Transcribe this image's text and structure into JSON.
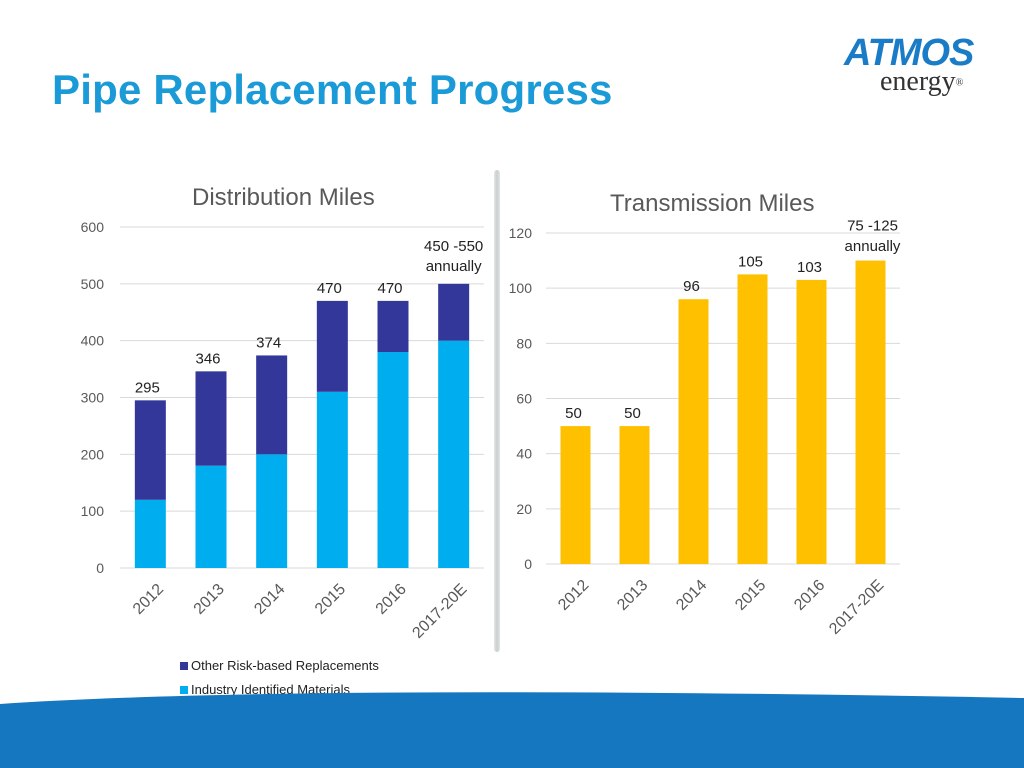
{
  "title": "Pipe Replacement Progress",
  "logo": {
    "brand": "ATMOS",
    "sub": "energy",
    "mark": "®"
  },
  "colors": {
    "title": "#1a9ad6",
    "dark_bar": "#323799",
    "light_bar": "#00aeef",
    "gold_bar": "#ffc000",
    "footer": "#1577bf"
  },
  "chart_data": [
    {
      "type": "bar",
      "stacked": true,
      "title": "Distribution Miles",
      "categories": [
        "2012",
        "2013",
        "2014",
        "2015",
        "2016",
        "2017-20E"
      ],
      "series": [
        {
          "name": "Industry Identified Materials",
          "values": [
            120,
            180,
            200,
            310,
            380,
            400
          ]
        },
        {
          "name": "Other Risk-based Replacements",
          "values": [
            175,
            166,
            174,
            160,
            90,
            100
          ]
        }
      ],
      "data_labels": [
        "295",
        "346",
        "374",
        "470",
        "470",
        "450 -550\nannually"
      ],
      "y_ticks": [
        "0",
        "100",
        "200",
        "300",
        "400",
        "500",
        "600"
      ],
      "ylim": [
        0,
        600
      ],
      "grid": true,
      "legend": [
        "Other Risk-based Replacements",
        "Industry Identified Materials"
      ],
      "legend_position": "bottom"
    },
    {
      "type": "bar",
      "title": "Transmission Miles",
      "categories": [
        "2012",
        "2013",
        "2014",
        "2015",
        "2016",
        "2017-20E"
      ],
      "values": [
        50,
        50,
        96,
        105,
        103,
        110
      ],
      "data_labels": [
        "50",
        "50",
        "96",
        "105",
        "103",
        "75 -125\nannually"
      ],
      "y_ticks": [
        "0",
        "20",
        "40",
        "60",
        "80",
        "100",
        "120"
      ],
      "ylim": [
        0,
        120
      ],
      "grid": true
    }
  ]
}
